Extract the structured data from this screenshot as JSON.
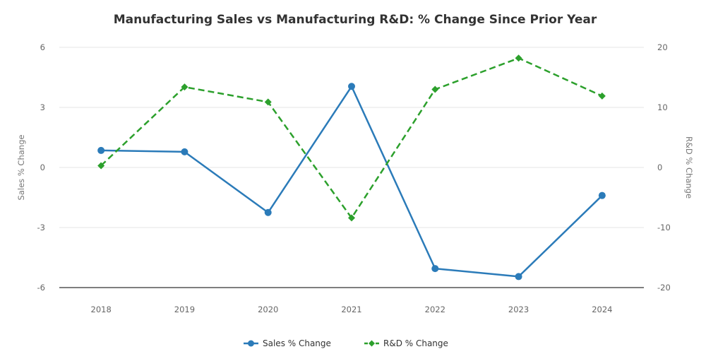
{
  "chart_data": {
    "type": "line",
    "title": "Manufacturing Sales vs Manufacturing R&D: % Change Since Prior Year",
    "categories": [
      "2018",
      "2019",
      "2020",
      "2021",
      "2022",
      "2023",
      "2024"
    ],
    "y_left": {
      "label": "Sales % Change",
      "ylim": [
        -6,
        6
      ],
      "ticks": [
        "6",
        "3",
        "0",
        "-3",
        "-6"
      ],
      "tick_values": [
        6,
        3,
        0,
        -3,
        -6
      ]
    },
    "y_right": {
      "label": "R&D % Change",
      "ylim": [
        -20,
        20
      ],
      "ticks": [
        "20",
        "10",
        "0",
        "-10",
        "-20"
      ],
      "tick_values": [
        20,
        10,
        0,
        -10,
        -20
      ]
    },
    "grid": true,
    "legend_position": "bottom-center",
    "series": [
      {
        "name": "Sales % Change",
        "axis": "left",
        "color": "#2b7bb9",
        "style": "solid",
        "marker": "circle",
        "values": [
          0.85,
          0.78,
          -2.25,
          4.05,
          -5.05,
          -5.45,
          -1.4
        ]
      },
      {
        "name": "R&D % Change",
        "axis": "right",
        "color": "#2ca02c",
        "style": "dashed",
        "marker": "diamond",
        "values": [
          0.3,
          13.4,
          10.9,
          -8.4,
          13.0,
          18.2,
          11.9
        ]
      }
    ]
  }
}
